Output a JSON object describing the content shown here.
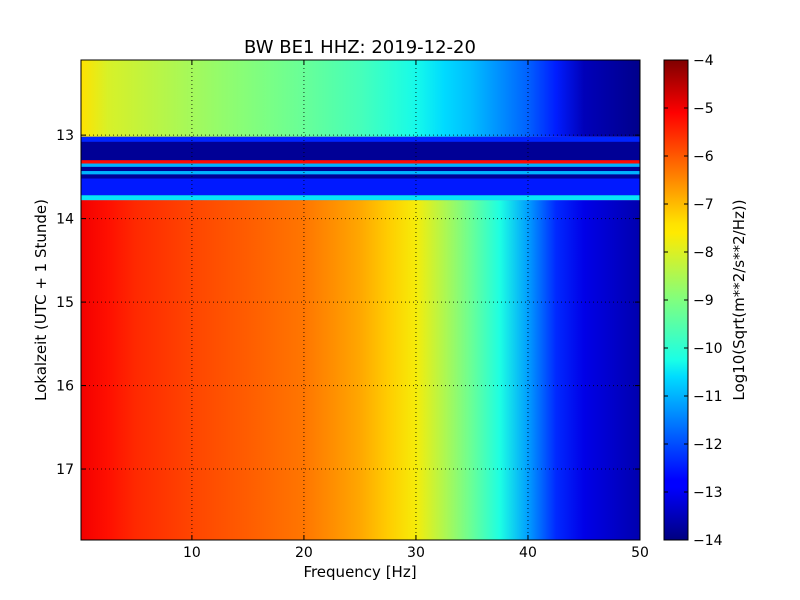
{
  "chart_data": {
    "type": "heatmap",
    "title": "BW BE1 HHZ: 2019-12-20",
    "xlabel": "Frequency [Hz]",
    "ylabel": "Lokalzeit (UTC + 1 Stunde)",
    "xlim": [
      0.1,
      50
    ],
    "ylim": [
      17.85,
      12.1
    ],
    "xticks": [
      10,
      20,
      30,
      40,
      50
    ],
    "xtick_labels": [
      "10",
      "20",
      "30",
      "40",
      "50"
    ],
    "yticks": [
      13,
      14,
      15,
      16,
      17
    ],
    "ytick_labels": [
      "13",
      "14",
      "15",
      "16",
      "17"
    ],
    "grid": true,
    "colormap": "jet",
    "colorbar": {
      "label": "Log10(Sqrt(m**2/s**2/Hz))",
      "range": [
        -14,
        -4
      ],
      "ticks": [
        -4,
        -5,
        -6,
        -7,
        -8,
        -9,
        -10,
        -11,
        -12,
        -13,
        -14
      ],
      "tick_labels": [
        "−4",
        "−5",
        "−6",
        "−7",
        "−8",
        "−9",
        "−10",
        "−11",
        "−12",
        "−13",
        "−14"
      ]
    },
    "spectral_profiles": [
      {
        "time_range": [
          12.1,
          13.02
        ],
        "freq_hz": [
          0,
          2,
          10,
          20,
          25,
          30,
          35,
          40,
          43,
          45,
          50
        ],
        "log10_psd": [
          -7.4,
          -8.0,
          -8.6,
          -9.3,
          -9.7,
          -10.3,
          -10.9,
          -11.8,
          -12.6,
          -13.5,
          -13.9
        ]
      },
      {
        "time_range": [
          13.02,
          13.78
        ],
        "freq_hz": [
          0,
          50
        ],
        "log10_psd": [
          -13.8,
          -13.8
        ],
        "note_bands": [
          {
            "time_range": [
              13.02,
              13.08
            ],
            "log10_psd": -12.4
          },
          {
            "time_range": [
              13.3,
              13.34
            ],
            "log10_psd": -5.2
          },
          {
            "time_range": [
              13.34,
              13.38
            ],
            "log10_psd": -11.0
          },
          {
            "time_range": [
              13.43,
              13.47
            ],
            "log10_psd": -11.0
          },
          {
            "time_range": [
              13.52,
              13.72
            ],
            "log10_psd": -12.5
          },
          {
            "time_range": [
              13.72,
              13.78
            ],
            "log10_psd": -10.5
          }
        ]
      },
      {
        "time_range": [
          13.78,
          17.85
        ],
        "freq_hz": [
          0,
          1,
          3,
          10,
          20,
          25,
          29,
          32,
          35,
          38,
          40,
          42,
          45,
          50
        ],
        "log10_psd": [
          -5.0,
          -4.8,
          -5.4,
          -5.8,
          -6.3,
          -6.8,
          -7.4,
          -8.3,
          -9.3,
          -10.4,
          -11.2,
          -12.2,
          -13.1,
          -13.6
        ]
      }
    ]
  }
}
